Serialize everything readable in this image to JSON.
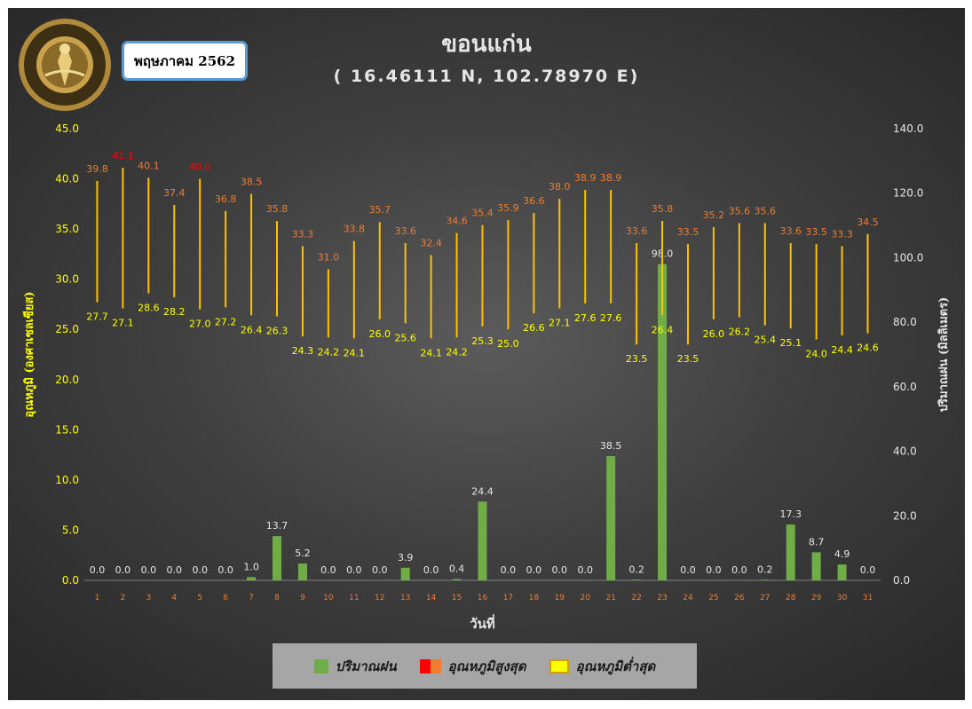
{
  "header": {
    "title": "ขอนแก่น",
    "subtitle": "( 16.46111 N, 102.78970 E)",
    "month_label": "พฤษภาคม 2562",
    "logo_text": "กรมอุตุนิยมวิทยา METEOROLOGICAL DEPARTMENT"
  },
  "colors": {
    "rain": "#70ad47",
    "tmax_label": "#ed7d31",
    "tmax_label_high": "#ff0000",
    "tmin_label": "#ffff00",
    "range_line": "#ffc000",
    "left_axis": "#ffff00",
    "right_axis": "#e6e6e6"
  },
  "legend": {
    "rain": "ปริมาณฝน",
    "tmax": "อุณหภูมิสูงสุด",
    "tmin": "อุณหภูมิต่ำสุด"
  },
  "chart_data": {
    "type": "bar",
    "xlabel": "วันที่",
    "ylabel_left": "อุณหภูมิ (องศาเซลเซียส)",
    "ylabel_right": "ปริมาณฝน (มิลลิเมตร)",
    "y_left_range": [
      0,
      45
    ],
    "y_left_ticks": [
      "0.0",
      "5.0",
      "10.0",
      "15.0",
      "20.0",
      "25.0",
      "30.0",
      "35.0",
      "40.0",
      "45.0"
    ],
    "y_right_range": [
      0,
      140
    ],
    "y_right_ticks": [
      "0.0",
      "20.0",
      "40.0",
      "60.0",
      "80.0",
      "100.0",
      "120.0",
      "140.0"
    ],
    "categories": [
      "1",
      "2",
      "3",
      "4",
      "5",
      "6",
      "7",
      "8",
      "9",
      "10",
      "11",
      "12",
      "13",
      "14",
      "15",
      "16",
      "17",
      "18",
      "19",
      "20",
      "21",
      "22",
      "23",
      "24",
      "25",
      "26",
      "27",
      "28",
      "29",
      "30",
      "31"
    ],
    "series": [
      {
        "name": "ปริมาณฝน",
        "axis": "right",
        "type": "bar",
        "values": [
          0.0,
          0.0,
          0.0,
          0.0,
          0.0,
          0.0,
          1.0,
          13.7,
          5.2,
          0.0,
          0.0,
          0.0,
          3.9,
          0.0,
          0.4,
          24.4,
          0.0,
          0.0,
          0.0,
          0.0,
          38.5,
          0.2,
          98.0,
          0.0,
          0.0,
          0.0,
          0.2,
          17.3,
          8.7,
          4.9,
          0.0
        ],
        "labels": [
          "0.0",
          "0.0",
          "0.0",
          "0.0",
          "0.0",
          "0.0",
          "1.0",
          "13.7",
          "5.2",
          "0.0",
          "0.0",
          "0.0",
          "3.9",
          "0.0",
          "0.4",
          "24.4",
          "0.0",
          "0.0",
          "0.0",
          "0.0",
          "38.5",
          "0.2",
          "98.0",
          "0.0",
          "0.0",
          "0.0",
          "0.2",
          "17.3",
          "8.7",
          "4.9",
          "0.0"
        ]
      },
      {
        "name": "อุณหภูมิสูงสุด",
        "axis": "left",
        "type": "range-high",
        "values": [
          39.8,
          41.1,
          40.1,
          37.4,
          40.0,
          36.8,
          38.5,
          35.8,
          33.3,
          31.0,
          33.8,
          35.7,
          33.6,
          32.4,
          34.6,
          35.4,
          35.9,
          36.6,
          38.0,
          38.9,
          38.9,
          33.6,
          35.8,
          33.5,
          35.2,
          35.6,
          35.6,
          33.6,
          33.5,
          33.3,
          34.5
        ],
        "labels": [
          "39.8",
          "41.1",
          "40.1",
          "37.4",
          "40.0",
          "36.8",
          "38.5",
          "35.8",
          "33.3",
          "31.0",
          "33.8",
          "35.7",
          "33.6",
          "32.4",
          "34.6",
          "35.4",
          "35.9",
          "36.6",
          "38.0",
          "38.9",
          "38.9",
          "33.6",
          "35.8",
          "33.5",
          "35.2",
          "35.6",
          "35.6",
          "33.6",
          "33.5",
          "33.3",
          "34.5"
        ]
      },
      {
        "name": "อุณหภูมิต่ำสุด",
        "axis": "left",
        "type": "range-low",
        "values": [
          27.7,
          27.1,
          28.6,
          28.2,
          27.0,
          27.2,
          26.4,
          26.3,
          24.3,
          24.2,
          24.1,
          26.0,
          25.6,
          24.1,
          24.2,
          25.3,
          25.0,
          26.6,
          27.1,
          27.6,
          27.6,
          23.5,
          26.4,
          23.5,
          26.0,
          26.2,
          25.4,
          25.1,
          24.0,
          24.4,
          24.6
        ],
        "labels": [
          "27.7",
          "27.1",
          "28.6",
          "28.2",
          "27.0",
          "27.2",
          "26.4",
          "26.3",
          "24.3",
          "24.2",
          "24.1",
          "26.0",
          "25.6",
          "24.1",
          "24.2",
          "25.3",
          "25.0",
          "26.6",
          "27.1",
          "27.6",
          "27.6",
          "23.5",
          "26.4",
          "23.5",
          "26.0",
          "26.2",
          "25.4",
          "25.1",
          "24.0",
          "24.4",
          "24.6"
        ]
      }
    ],
    "highlight_high_days": [
      "2",
      "5"
    ],
    "grid": false,
    "legend_position": "bottom"
  }
}
